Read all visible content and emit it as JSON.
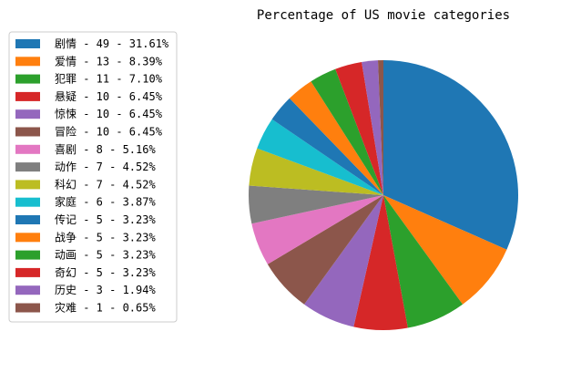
{
  "chart_data": {
    "type": "pie",
    "title": "Percentage of US movie categories",
    "start_angle_deg": 90,
    "direction": "clockwise",
    "legend_position": "upper-left",
    "slices": [
      {
        "label": "剧情 - 49 - 31.61%",
        "value": 49,
        "color": "#1f77b4"
      },
      {
        "label": "爱情 - 13 - 8.39%",
        "value": 13,
        "color": "#ff7f0e"
      },
      {
        "label": "犯罪 - 11 - 7.10%",
        "value": 11,
        "color": "#2ca02c"
      },
      {
        "label": "悬疑 - 10 - 6.45%",
        "value": 10,
        "color": "#d62728"
      },
      {
        "label": "惊悚 - 10 - 6.45%",
        "value": 10,
        "color": "#9467bd"
      },
      {
        "label": "冒险 - 10 - 6.45%",
        "value": 10,
        "color": "#8c564b"
      },
      {
        "label": "喜剧 - 8 - 5.16%",
        "value": 8,
        "color": "#e377c2"
      },
      {
        "label": "动作 - 7 - 4.52%",
        "value": 7,
        "color": "#7f7f7f"
      },
      {
        "label": "科幻 - 7 - 4.52%",
        "value": 7,
        "color": "#bcbd22"
      },
      {
        "label": "家庭 - 6 - 3.87%",
        "value": 6,
        "color": "#17becf"
      },
      {
        "label": "传记 - 5 - 3.23%",
        "value": 5,
        "color": "#1f77b4"
      },
      {
        "label": "战争 - 5 - 3.23%",
        "value": 5,
        "color": "#ff7f0e"
      },
      {
        "label": "动画 - 5 - 3.23%",
        "value": 5,
        "color": "#2ca02c"
      },
      {
        "label": "奇幻 - 5 - 3.23%",
        "value": 5,
        "color": "#d62728"
      },
      {
        "label": "历史 - 3 - 1.94%",
        "value": 3,
        "color": "#9467bd"
      },
      {
        "label": "灾难 - 1 - 0.65%",
        "value": 1,
        "color": "#8c564b"
      }
    ]
  }
}
